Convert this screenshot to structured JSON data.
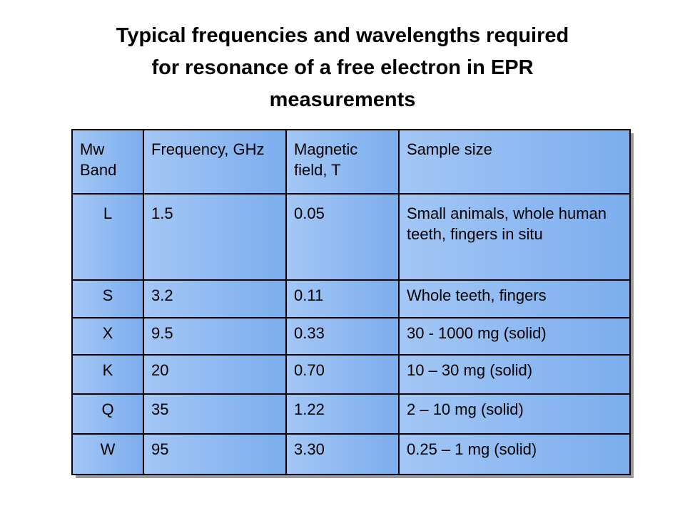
{
  "title": {
    "line1": "Typical frequencies and wavelengths required",
    "line2": "for resonance of a free electron in EPR",
    "line3": "measurements"
  },
  "table": {
    "headers": [
      "Mw Band",
      "Frequency, GHz",
      "Magnetic field, T",
      "Sample size"
    ],
    "rows": [
      [
        "L",
        "1.5",
        "0.05",
        "Small animals, whole human teeth, fingers in situ"
      ],
      [
        "S",
        "3.2",
        "0.11",
        "Whole teeth, fingers"
      ],
      [
        "X",
        "9.5",
        "0.33",
        "30 - 1000 mg (solid)"
      ],
      [
        "K",
        "20",
        "0.70",
        "10 – 30 mg (solid)"
      ],
      [
        "Q",
        "35",
        "1.22",
        "2 – 10 mg (solid)"
      ],
      [
        "W",
        "95",
        "3.30",
        "0.25 – 1 mg (solid)"
      ]
    ]
  },
  "colors": {
    "cell_light": "#a3c7f5",
    "cell_dark": "#7cadee",
    "border": "#000000",
    "shadow": "#9a9a9a"
  }
}
